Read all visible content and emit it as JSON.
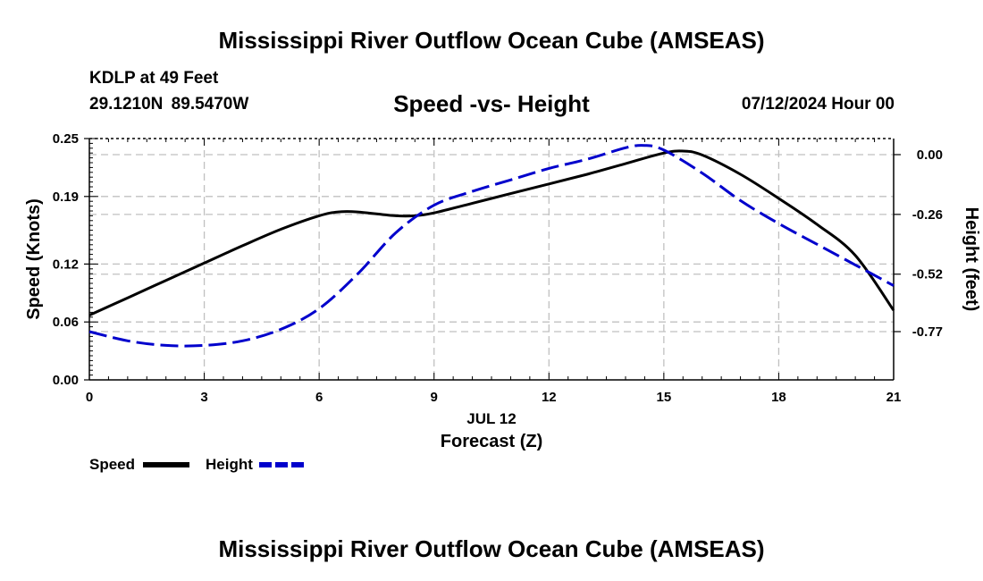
{
  "header": {
    "title": "Mississippi River Outflow Ocean Cube (AMSEAS)",
    "station": "KDLP at 49 Feet",
    "coordinates": "29.1210N  89.5470W",
    "subtitle": "Speed -vs- Height",
    "datetime": "07/12/2024 Hour 00"
  },
  "footer": {
    "title": "Mississippi River Outflow Ocean Cube (AMSEAS)"
  },
  "chart_data": {
    "type": "line",
    "title": "Speed -vs- Height",
    "xlabel": "Forecast (Z)",
    "xdate_label": "JUL 12",
    "ylabel": "Speed (Knots)",
    "y2label": "Height (feet)",
    "xlim": [
      0,
      21
    ],
    "ylim": [
      0,
      0.25
    ],
    "y2lim": [
      -0.98,
      0.07
    ],
    "x_ticks": [
      0,
      3,
      6,
      9,
      12,
      15,
      18,
      21
    ],
    "x_tick_labels": [
      "0",
      "3",
      "6",
      "9",
      "12",
      "15",
      "18",
      "21"
    ],
    "y_ticks": [
      0,
      0.06,
      0.12,
      0.19,
      0.25
    ],
    "y_tick_labels": [
      "0.00",
      "0.06",
      "0.12",
      "0.19",
      "0.25"
    ],
    "y2_ticks": [
      0.0,
      -0.26,
      -0.52,
      -0.77
    ],
    "y2_tick_labels": [
      "0.00",
      "-0.26",
      "-0.52",
      "-0.77"
    ],
    "grid": true,
    "legend": "bottom-left",
    "series": [
      {
        "name": "Speed",
        "axis": "left",
        "color": "#000000",
        "dash": "solid",
        "x": [
          0,
          1,
          2,
          3,
          4,
          5,
          6,
          6.5,
          7,
          8,
          8.5,
          9,
          10,
          11,
          12,
          13,
          14,
          15,
          15.5,
          16,
          17,
          18,
          19,
          20,
          21
        ],
        "values": [
          0.067,
          0.085,
          0.103,
          0.121,
          0.139,
          0.156,
          0.17,
          0.174,
          0.174,
          0.17,
          0.17,
          0.173,
          0.183,
          0.193,
          0.203,
          0.213,
          0.224,
          0.235,
          0.237,
          0.233,
          0.213,
          0.188,
          0.161,
          0.129,
          0.072
        ]
      },
      {
        "name": "Height",
        "axis": "right",
        "color": "#0000cc",
        "dash": "dashed",
        "x": [
          0,
          1,
          2,
          3,
          4,
          5,
          6,
          7,
          8,
          9,
          10,
          11,
          12,
          13,
          14,
          14.5,
          15,
          16,
          17,
          18,
          19,
          20,
          21
        ],
        "values": [
          -0.77,
          -0.81,
          -0.83,
          -0.83,
          -0.81,
          -0.76,
          -0.67,
          -0.52,
          -0.34,
          -0.22,
          -0.16,
          -0.11,
          -0.06,
          -0.02,
          0.03,
          0.04,
          0.02,
          -0.08,
          -0.2,
          -0.3,
          -0.39,
          -0.48,
          -0.57
        ]
      }
    ]
  }
}
